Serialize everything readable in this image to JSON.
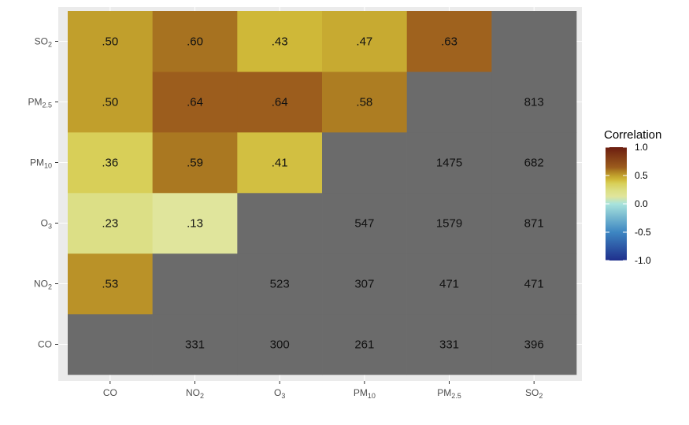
{
  "chart_data": {
    "type": "heatmap",
    "categories": [
      "CO",
      "NO2",
      "O3",
      "PM10",
      "PM2.5",
      "SO2"
    ],
    "tick_labels": [
      {
        "base": "CO",
        "sub": ""
      },
      {
        "base": "NO",
        "sub": "2"
      },
      {
        "base": "O",
        "sub": "3"
      },
      {
        "base": "PM",
        "sub": "10"
      },
      {
        "base": "PM",
        "sub": "2.5"
      },
      {
        "base": "SO",
        "sub": "2"
      }
    ],
    "correlations": [
      {
        "x": "CO",
        "y": "NO2",
        "value": 0.53,
        "label": ".53"
      },
      {
        "x": "CO",
        "y": "O3",
        "value": 0.23,
        "label": ".23"
      },
      {
        "x": "CO",
        "y": "PM10",
        "value": 0.36,
        "label": ".36"
      },
      {
        "x": "CO",
        "y": "PM2.5",
        "value": 0.5,
        "label": ".50"
      },
      {
        "x": "CO",
        "y": "SO2",
        "value": 0.5,
        "label": ".50"
      },
      {
        "x": "NO2",
        "y": "O3",
        "value": 0.13,
        "label": ".13"
      },
      {
        "x": "NO2",
        "y": "PM10",
        "value": 0.59,
        "label": ".59"
      },
      {
        "x": "NO2",
        "y": "PM2.5",
        "value": 0.64,
        "label": ".64"
      },
      {
        "x": "NO2",
        "y": "SO2",
        "value": 0.6,
        "label": ".60"
      },
      {
        "x": "O3",
        "y": "PM10",
        "value": 0.41,
        "label": ".41"
      },
      {
        "x": "O3",
        "y": "PM2.5",
        "value": 0.64,
        "label": ".64"
      },
      {
        "x": "O3",
        "y": "SO2",
        "value": 0.43,
        "label": ".43"
      },
      {
        "x": "PM10",
        "y": "PM2.5",
        "value": 0.58,
        "label": ".58"
      },
      {
        "x": "PM10",
        "y": "SO2",
        "value": 0.47,
        "label": ".47"
      },
      {
        "x": "PM2.5",
        "y": "SO2",
        "value": 0.63,
        "label": ".63"
      }
    ],
    "counts": [
      {
        "x": "NO2",
        "y": "CO",
        "value": 331
      },
      {
        "x": "O3",
        "y": "CO",
        "value": 300
      },
      {
        "x": "PM10",
        "y": "CO",
        "value": 261
      },
      {
        "x": "PM2.5",
        "y": "CO",
        "value": 331
      },
      {
        "x": "SO2",
        "y": "CO",
        "value": 396
      },
      {
        "x": "O3",
        "y": "NO2",
        "value": 523
      },
      {
        "x": "PM10",
        "y": "NO2",
        "value": 307
      },
      {
        "x": "PM2.5",
        "y": "NO2",
        "value": 471
      },
      {
        "x": "SO2",
        "y": "NO2",
        "value": 471
      },
      {
        "x": "PM10",
        "y": "O3",
        "value": 547
      },
      {
        "x": "PM2.5",
        "y": "O3",
        "value": 1579
      },
      {
        "x": "SO2",
        "y": "O3",
        "value": 871
      },
      {
        "x": "PM2.5",
        "y": "PM10",
        "value": 1475
      },
      {
        "x": "SO2",
        "y": "PM10",
        "value": 682
      },
      {
        "x": "SO2",
        "y": "PM2.5",
        "value": 813
      }
    ],
    "legend": {
      "title": "Correlation",
      "range": [
        -1,
        1
      ],
      "ticks": [
        "1.0",
        "0.5",
        "0.0",
        "-0.5",
        "-1.0"
      ],
      "tick_values": [
        1.0,
        0.5,
        0.0,
        -0.5,
        -1.0
      ],
      "placement": "right",
      "color_stops": [
        {
          "value": -1.0,
          "color": "#1f2f8c"
        },
        {
          "value": -0.5,
          "color": "#3d86c2"
        },
        {
          "value": 0.0,
          "color": "#a8e3dc"
        },
        {
          "value": 0.13,
          "color": "#e0e59c"
        },
        {
          "value": 0.23,
          "color": "#dcdf86"
        },
        {
          "value": 0.36,
          "color": "#d8cf58"
        },
        {
          "value": 0.43,
          "color": "#cfb838"
        },
        {
          "value": 0.5,
          "color": "#c19f2c"
        },
        {
          "value": 0.58,
          "color": "#ad7d22"
        },
        {
          "value": 0.64,
          "color": "#9c5d1d"
        },
        {
          "value": 1.0,
          "color": "#6b1d10"
        }
      ]
    },
    "na_fill": "#6b6b6b",
    "panel_background": "#ebebeb",
    "grid": true
  }
}
